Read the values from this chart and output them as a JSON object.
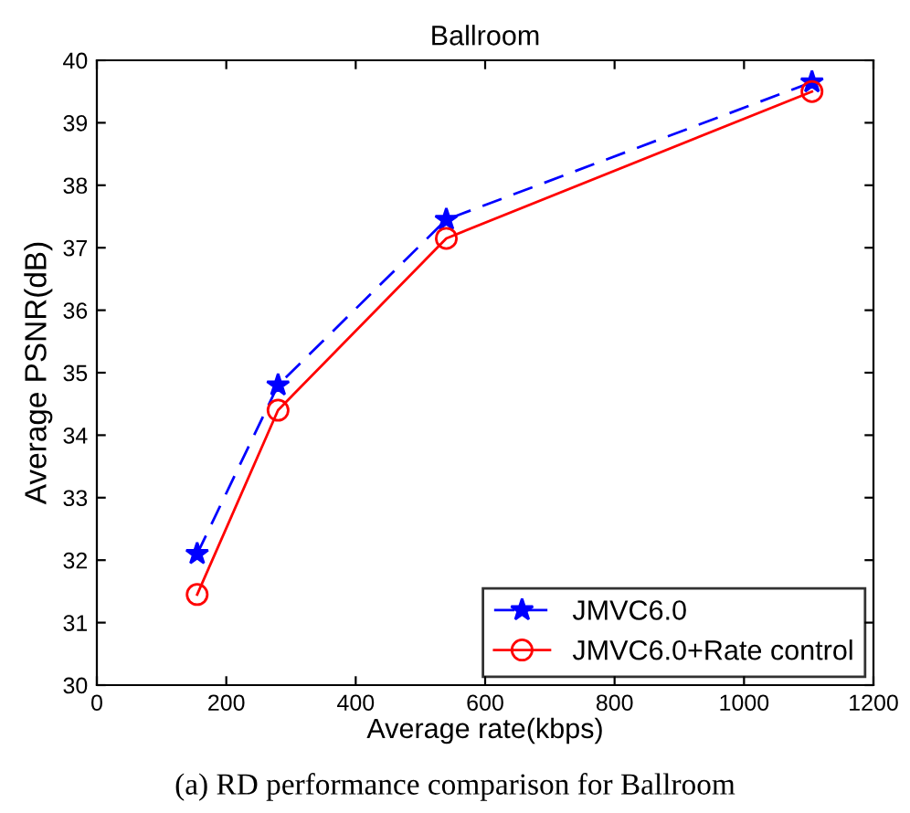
{
  "chart_data": {
    "type": "line",
    "title": "Ballroom",
    "xlabel": "Average rate(kbps)",
    "ylabel": "Average PSNR(dB)",
    "x": [
      155,
      280,
      540,
      1105
    ],
    "series": [
      {
        "name": "JMVC6.0",
        "color": "#0000ff",
        "values": [
          32.1,
          34.8,
          37.45,
          39.65
        ],
        "marker": "star",
        "line_style": "dashed"
      },
      {
        "name": "JMVC6.0+Rate control",
        "color": "#ff0000",
        "values": [
          31.45,
          34.4,
          37.15,
          39.5
        ],
        "marker": "circle",
        "line_style": "solid"
      }
    ],
    "xlim": [
      0,
      1200
    ],
    "xticks": [
      0,
      200,
      400,
      600,
      800,
      1000,
      1200
    ],
    "ylim": [
      30,
      40
    ],
    "yticks": [
      30,
      31,
      32,
      33,
      34,
      35,
      36,
      37,
      38,
      39,
      40
    ],
    "grid": false,
    "legend": "bottom right",
    "annotations": [
      "(a) RD performance comparison for Ballroom"
    ]
  }
}
